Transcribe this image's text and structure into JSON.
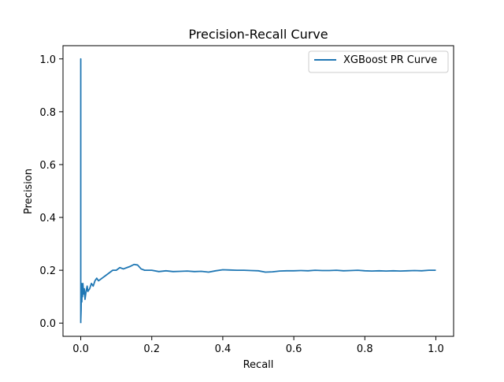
{
  "chart_data": {
    "type": "line",
    "title": "Precision-Recall Curve",
    "xlabel": "Recall",
    "ylabel": "Precision",
    "xlim": [
      -0.05,
      1.05
    ],
    "ylim": [
      -0.05,
      1.05
    ],
    "xticks": [
      0.0,
      0.2,
      0.4,
      0.6,
      0.8,
      1.0
    ],
    "xtick_labels": [
      "0.0",
      "0.2",
      "0.4",
      "0.6",
      "0.8",
      "1.0"
    ],
    "yticks": [
      0.0,
      0.2,
      0.4,
      0.6,
      0.8,
      1.0
    ],
    "ytick_labels": [
      "0.0",
      "0.2",
      "0.4",
      "0.6",
      "0.8",
      "1.0"
    ],
    "grid": false,
    "legend_position": "upper right",
    "series": [
      {
        "name": "XGBoost PR Curve",
        "color": "#1f77b4",
        "x": [
          0.0,
          0.0,
          0.0,
          0.001,
          0.002,
          0.003,
          0.004,
          0.005,
          0.006,
          0.008,
          0.01,
          0.012,
          0.015,
          0.018,
          0.02,
          0.025,
          0.03,
          0.035,
          0.04,
          0.045,
          0.05,
          0.06,
          0.07,
          0.08,
          0.09,
          0.1,
          0.11,
          0.12,
          0.13,
          0.14,
          0.15,
          0.16,
          0.17,
          0.18,
          0.2,
          0.22,
          0.24,
          0.26,
          0.28,
          0.3,
          0.32,
          0.34,
          0.36,
          0.38,
          0.4,
          0.42,
          0.44,
          0.46,
          0.48,
          0.5,
          0.52,
          0.54,
          0.56,
          0.58,
          0.6,
          0.62,
          0.64,
          0.66,
          0.68,
          0.7,
          0.72,
          0.74,
          0.76,
          0.78,
          0.8,
          0.82,
          0.84,
          0.86,
          0.88,
          0.9,
          0.92,
          0.94,
          0.96,
          0.98,
          1.0
        ],
        "y": [
          0.0,
          1.0,
          0.01,
          0.05,
          0.15,
          0.08,
          0.14,
          0.1,
          0.15,
          0.11,
          0.13,
          0.09,
          0.12,
          0.14,
          0.12,
          0.13,
          0.15,
          0.14,
          0.16,
          0.17,
          0.16,
          0.17,
          0.18,
          0.19,
          0.2,
          0.2,
          0.21,
          0.205,
          0.21,
          0.215,
          0.222,
          0.22,
          0.205,
          0.2,
          0.2,
          0.195,
          0.198,
          0.195,
          0.196,
          0.197,
          0.195,
          0.196,
          0.193,
          0.198,
          0.202,
          0.201,
          0.2,
          0.2,
          0.199,
          0.198,
          0.193,
          0.194,
          0.197,
          0.198,
          0.198,
          0.199,
          0.198,
          0.2,
          0.199,
          0.199,
          0.2,
          0.198,
          0.199,
          0.2,
          0.198,
          0.197,
          0.198,
          0.197,
          0.198,
          0.197,
          0.198,
          0.199,
          0.198,
          0.2,
          0.2
        ]
      }
    ]
  }
}
